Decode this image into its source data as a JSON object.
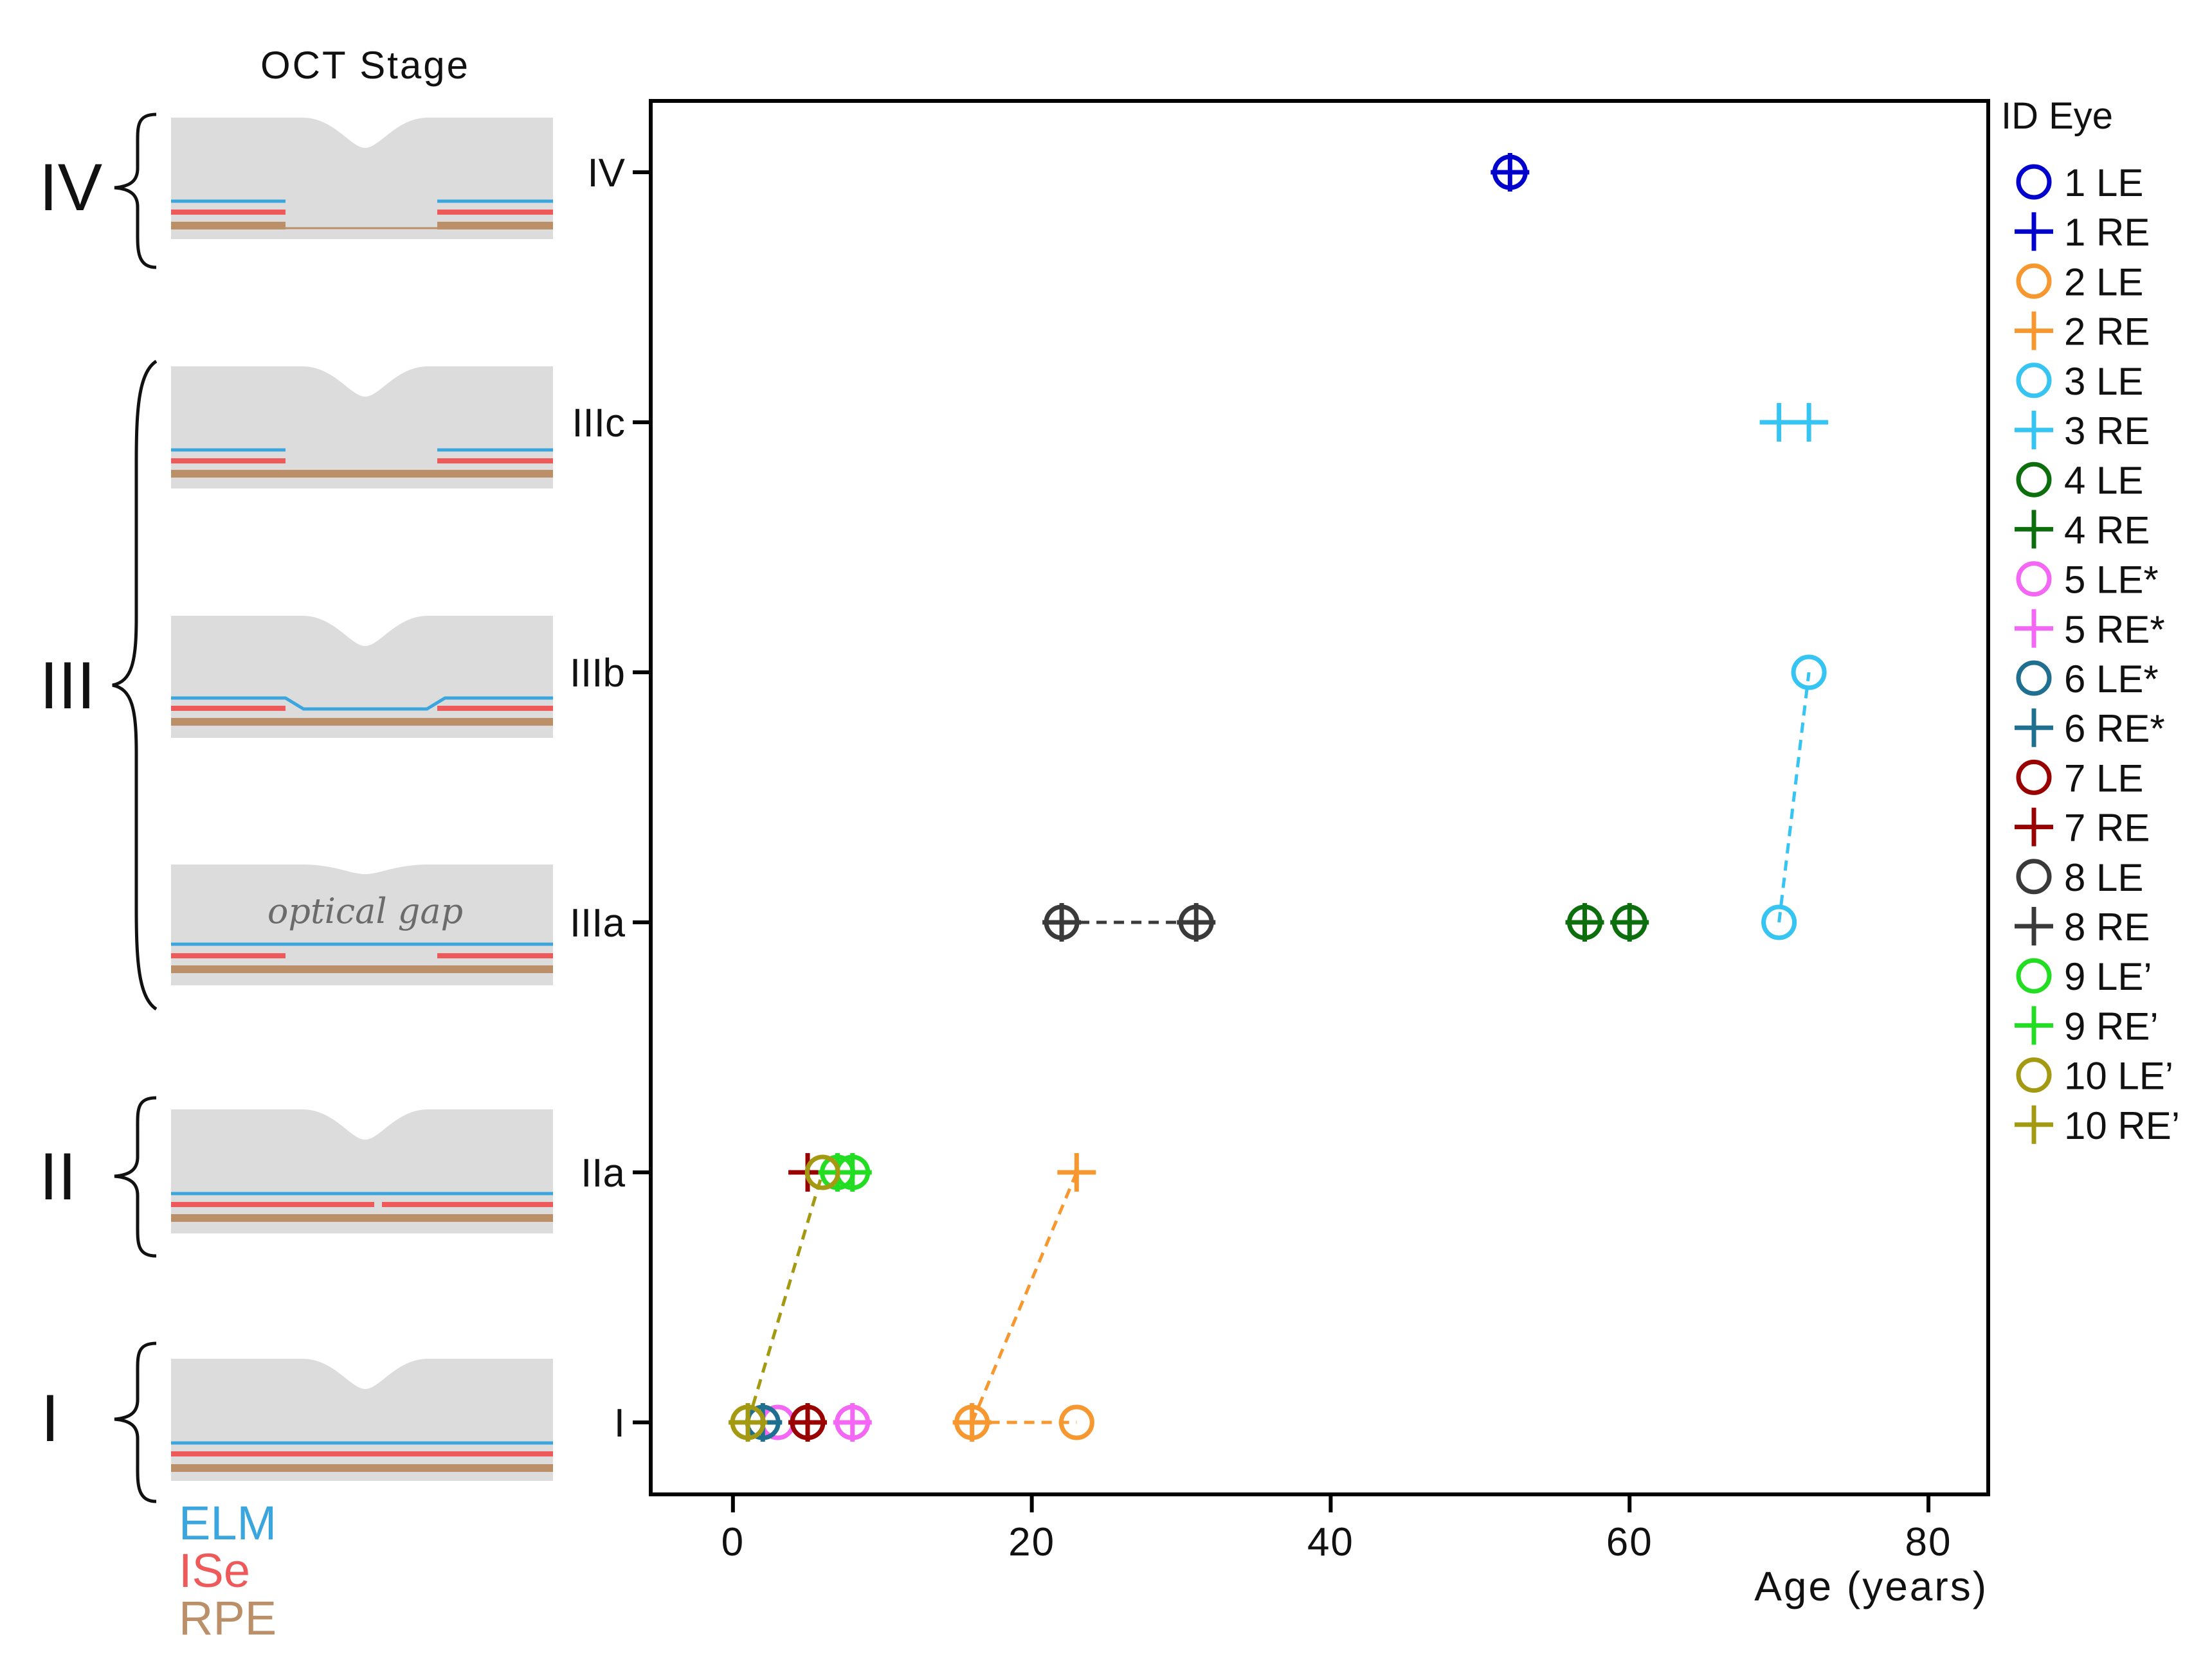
{
  "diagram": {
    "title": "OCT Stage",
    "annotation": "optical gap",
    "stage_labels": [
      "IV",
      "III",
      "II",
      "I"
    ],
    "layer_legend": [
      {
        "name": "ELM",
        "color": "#3aa6dd"
      },
      {
        "name": "ISe",
        "color": "#ee5a5a"
      },
      {
        "name": "RPE",
        "color": "#bb9068"
      }
    ],
    "tissue_color": "#dcdcdc"
  },
  "chart_data": {
    "type": "scatter",
    "title": "",
    "xlabel": "Age (years)",
    "ylabel": "",
    "xlim": [
      -5.5,
      84
    ],
    "xticks": [
      0,
      20,
      40,
      60,
      80
    ],
    "y_categories": [
      "I",
      "IIa",
      "IIIa",
      "IIIb",
      "IIIc",
      "IV"
    ],
    "grid": false,
    "legend_title": "ID Eye",
    "legend_position": "right",
    "series": [
      {
        "name": "1 LE",
        "marker": "circle",
        "color": "#0000cc",
        "points": [
          {
            "x": 52,
            "y": "IV"
          }
        ],
        "connected": false
      },
      {
        "name": "1 RE",
        "marker": "plus",
        "color": "#0000cc",
        "points": [
          {
            "x": 52,
            "y": "IV"
          }
        ],
        "connected": false
      },
      {
        "name": "2 LE",
        "marker": "circle",
        "color": "#f7972f",
        "points": [
          {
            "x": 16,
            "y": "I"
          },
          {
            "x": 23,
            "y": "I"
          }
        ],
        "connected": true
      },
      {
        "name": "2 RE",
        "marker": "plus",
        "color": "#f7972f",
        "points": [
          {
            "x": 16,
            "y": "I"
          },
          {
            "x": 23,
            "y": "IIa"
          }
        ],
        "connected": true
      },
      {
        "name": "3 LE",
        "marker": "circle",
        "color": "#36c4f2",
        "points": [
          {
            "x": 70,
            "y": "IIIa"
          },
          {
            "x": 72,
            "y": "IIIb"
          }
        ],
        "connected": true
      },
      {
        "name": "3 RE",
        "marker": "plus",
        "color": "#36c4f2",
        "points": [
          {
            "x": 70,
            "y": "IIIc"
          },
          {
            "x": 72,
            "y": "IIIc"
          }
        ],
        "connected": false
      },
      {
        "name": "4 LE",
        "marker": "circle",
        "color": "#0d6e0d",
        "points": [
          {
            "x": 57,
            "y": "IIIa"
          },
          {
            "x": 60,
            "y": "IIIa"
          }
        ],
        "connected": false
      },
      {
        "name": "4 RE",
        "marker": "plus",
        "color": "#0d6e0d",
        "points": [
          {
            "x": 57,
            "y": "IIIa"
          },
          {
            "x": 60,
            "y": "IIIa"
          }
        ],
        "connected": false
      },
      {
        "name": "5 LE*",
        "marker": "circle",
        "color": "#f466f4",
        "points": [
          {
            "x": 3,
            "y": "I"
          },
          {
            "x": 8,
            "y": "I"
          }
        ],
        "connected": false
      },
      {
        "name": "5 RE*",
        "marker": "plus",
        "color": "#f466f4",
        "points": [
          {
            "x": 8,
            "y": "I"
          }
        ],
        "connected": false
      },
      {
        "name": "6 LE*",
        "marker": "circle",
        "color": "#1f7090",
        "points": [
          {
            "x": 2,
            "y": "I"
          }
        ],
        "connected": false
      },
      {
        "name": "6 RE*",
        "marker": "plus",
        "color": "#1f7090",
        "points": [
          {
            "x": 2,
            "y": "I"
          }
        ],
        "connected": false
      },
      {
        "name": "7 LE",
        "marker": "circle",
        "color": "#990000",
        "points": [
          {
            "x": 5,
            "y": "I"
          }
        ],
        "connected": false
      },
      {
        "name": "7 RE",
        "marker": "plus",
        "color": "#990000",
        "points": [
          {
            "x": 5,
            "y": "I"
          },
          {
            "x": 5,
            "y": "IIa"
          }
        ],
        "connected": false
      },
      {
        "name": "8 LE",
        "marker": "circle",
        "color": "#3a3a3a",
        "points": [
          {
            "x": 22,
            "y": "IIIa"
          },
          {
            "x": 31,
            "y": "IIIa"
          }
        ],
        "connected": true
      },
      {
        "name": "8 RE",
        "marker": "plus",
        "color": "#3a3a3a",
        "points": [
          {
            "x": 22,
            "y": "IIIa"
          },
          {
            "x": 31,
            "y": "IIIa"
          }
        ],
        "connected": false
      },
      {
        "name": "9 LE’",
        "marker": "circle",
        "color": "#22dd22",
        "points": [
          {
            "x": 7,
            "y": "IIa"
          },
          {
            "x": 8,
            "y": "IIa"
          }
        ],
        "connected": false
      },
      {
        "name": "9 RE’",
        "marker": "plus",
        "color": "#22dd22",
        "points": [
          {
            "x": 7,
            "y": "IIa"
          },
          {
            "x": 8,
            "y": "IIa"
          }
        ],
        "connected": false
      },
      {
        "name": "10 LE’",
        "marker": "circle",
        "color": "#a39a12",
        "points": [
          {
            "x": 1,
            "y": "I"
          },
          {
            "x": 6,
            "y": "IIa"
          }
        ],
        "connected": true
      },
      {
        "name": "10 RE’",
        "marker": "plus",
        "color": "#a39a12",
        "points": [
          {
            "x": 1,
            "y": "I"
          }
        ],
        "connected": false
      }
    ]
  }
}
